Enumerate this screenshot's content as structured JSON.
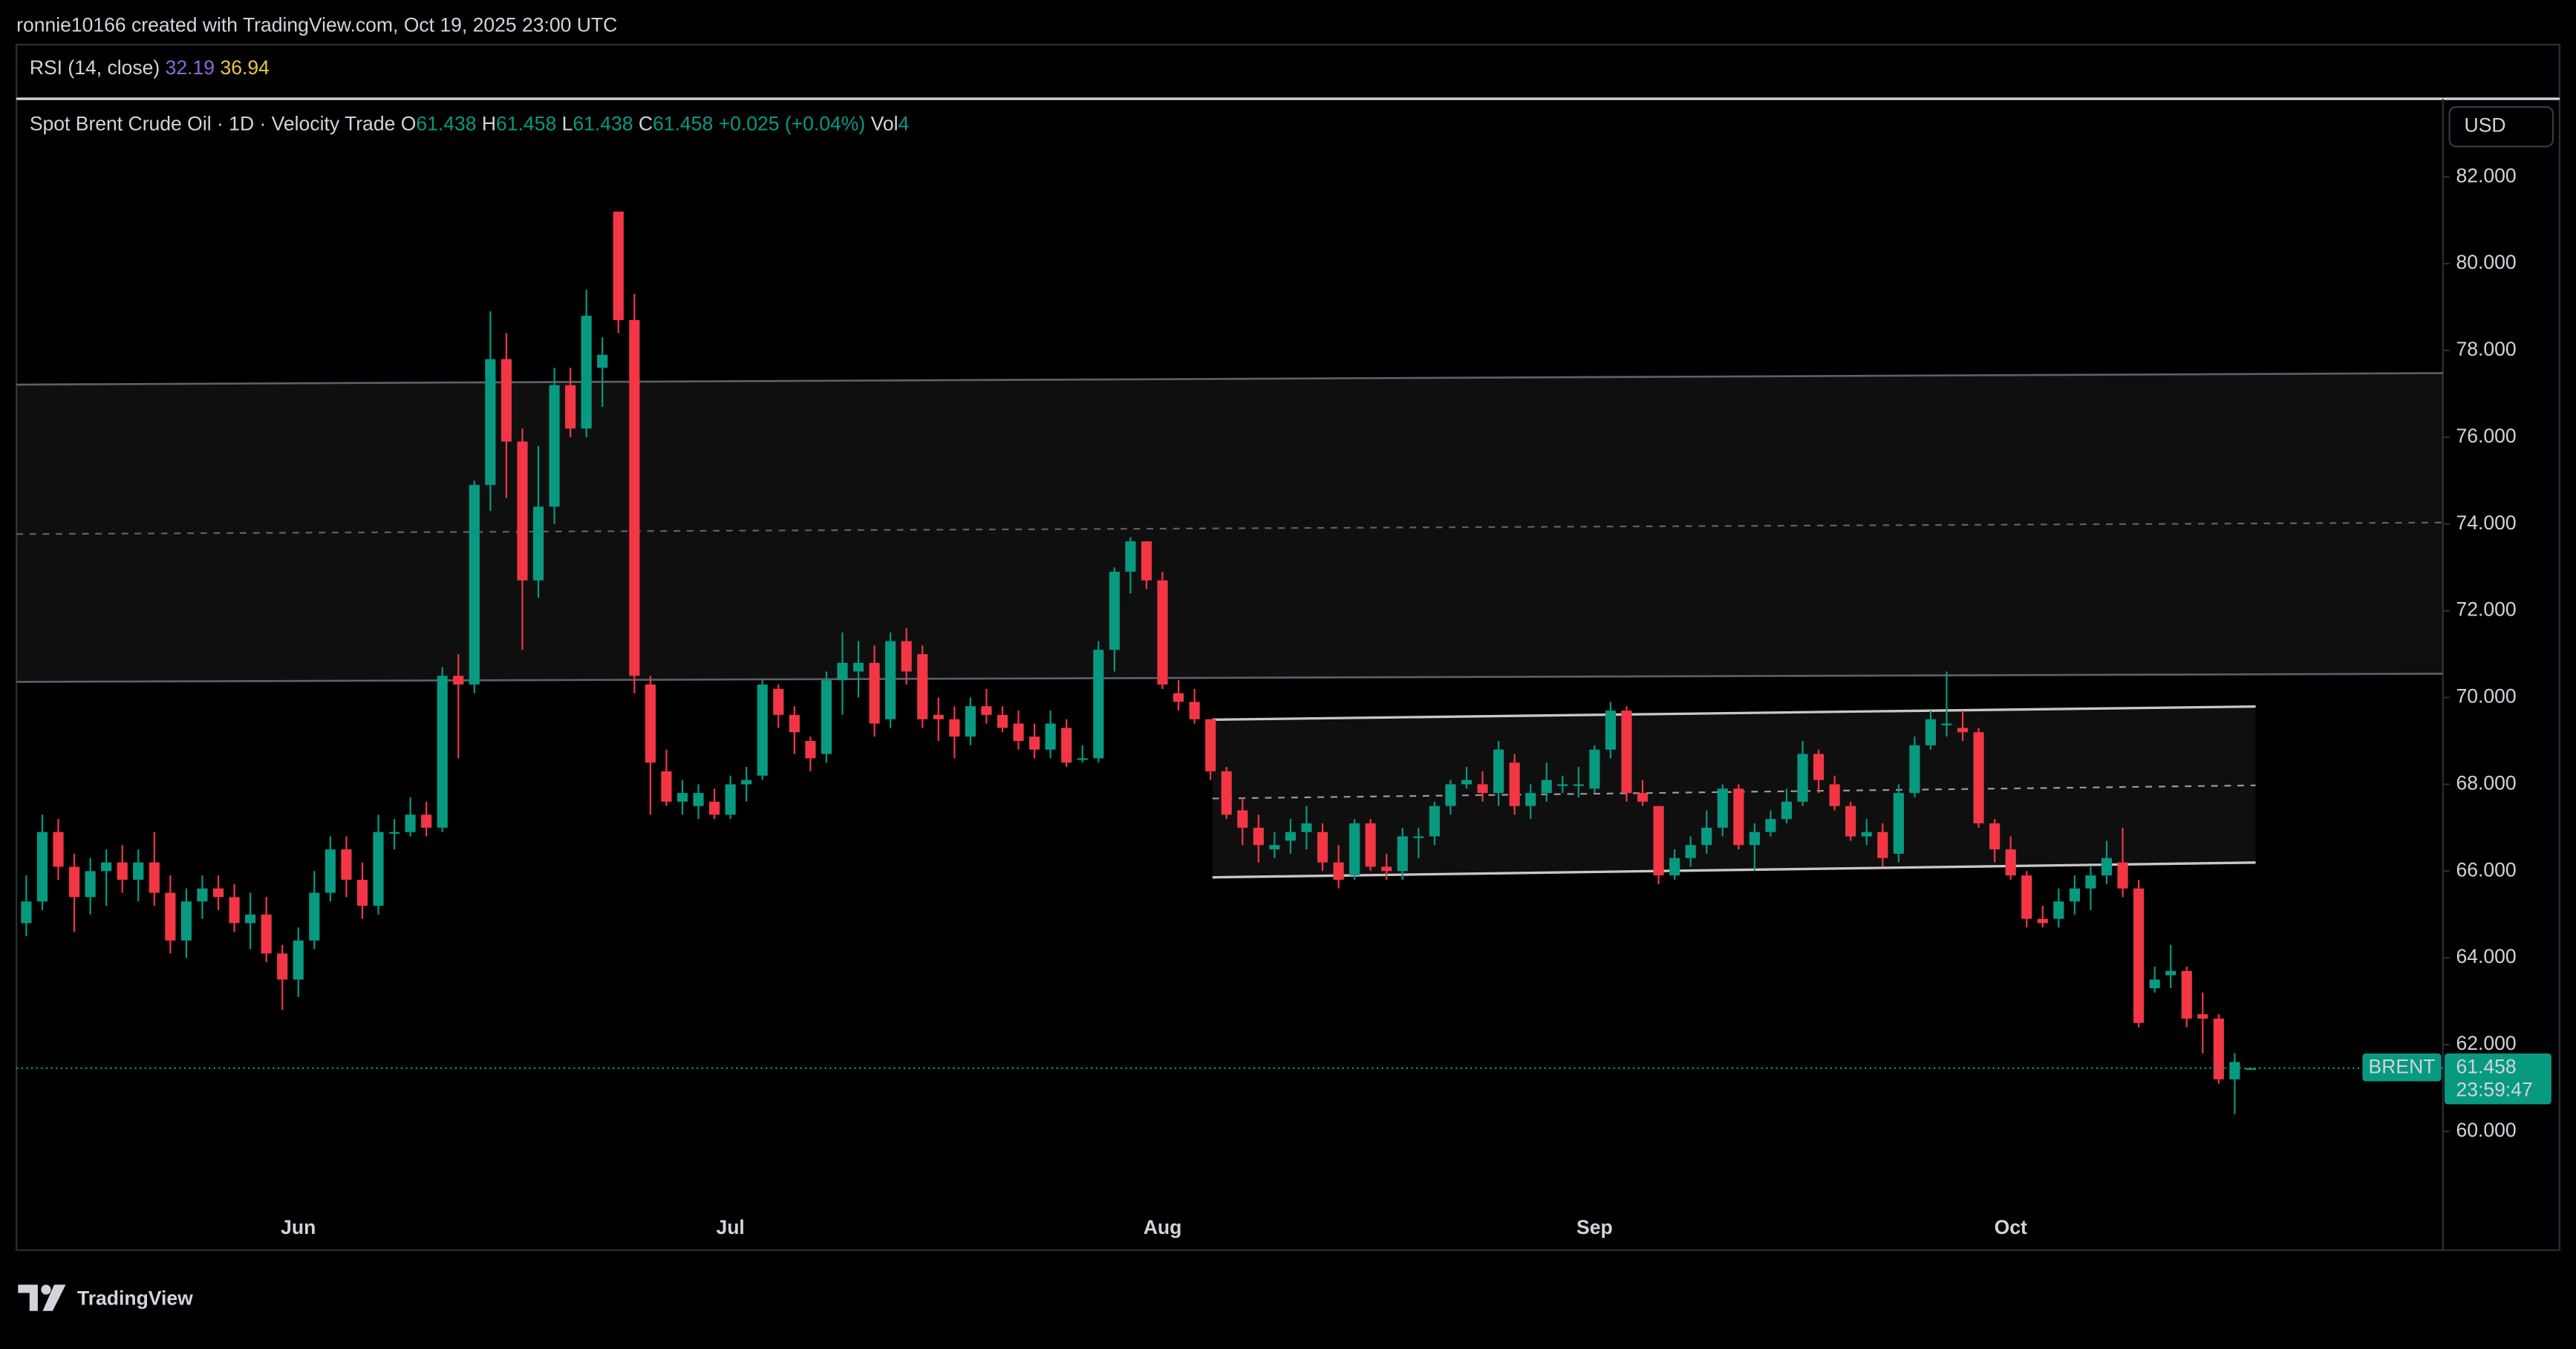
{
  "header": {
    "credit": "ronnie10166 created with TradingView.com, Oct 19, 2025 23:00 UTC",
    "brand": "TradingView"
  },
  "chart_data": {
    "type": "candlestick",
    "title": "Spot Brent Crude Oil · 1D · Velocity Trade",
    "ohlc_letters": [
      "O",
      "H",
      "L",
      "C"
    ],
    "change": "+0.025 (+0.04%)",
    "volume_label": "Vol",
    "volume": 4,
    "currency": "USD",
    "symbol": "BRENT",
    "countdown": "23:59:47",
    "up_color": "#089981",
    "down_color": "#f23645",
    "rsi": {
      "label": "RSI (14, close)",
      "values": [
        32.19,
        36.94
      ],
      "colors": [
        "#8c6ad8",
        "#e8c547"
      ]
    },
    "categories": [
      null,
      null,
      null,
      null,
      null,
      null,
      null,
      null,
      null,
      null,
      null,
      null,
      null,
      null,
      null,
      null,
      null,
      "Jun",
      null,
      null,
      null,
      null,
      null,
      null,
      null,
      null,
      null,
      null,
      null,
      null,
      null,
      null,
      null,
      null,
      null,
      null,
      null,
      null,
      null,
      null,
      null,
      null,
      null,
      null,
      "Jul",
      null,
      null,
      null,
      null,
      null,
      null,
      null,
      null,
      null,
      null,
      null,
      null,
      null,
      null,
      null,
      null,
      null,
      null,
      null,
      null,
      null,
      null,
      null,
      null,
      null,
      null,
      "Aug",
      null,
      null,
      null,
      null,
      null,
      null,
      null,
      null,
      null,
      null,
      null,
      null,
      null,
      null,
      null,
      null,
      null,
      null,
      null,
      null,
      null,
      null,
      null,
      null,
      null,
      null,
      "Sep",
      null,
      null,
      null,
      null,
      null,
      null,
      null,
      null,
      null,
      null,
      null,
      null,
      null,
      null,
      null,
      null,
      null,
      null,
      null,
      null,
      null,
      null,
      null,
      null,
      null,
      "Oct",
      null,
      null,
      null,
      null,
      null,
      null,
      null,
      null,
      null,
      null,
      null,
      null,
      null,
      null,
      null
    ],
    "candles": [
      [
        64.8,
        65.9,
        64.5,
        65.3
      ],
      [
        65.3,
        67.3,
        65.1,
        66.9
      ],
      [
        66.9,
        67.2,
        65.8,
        66.1
      ],
      [
        66.1,
        66.4,
        64.6,
        65.4
      ],
      [
        65.4,
        66.3,
        65.0,
        66.0
      ],
      [
        66.0,
        66.5,
        65.2,
        66.2
      ],
      [
        66.2,
        66.6,
        65.5,
        65.8
      ],
      [
        65.8,
        66.5,
        65.3,
        66.2
      ],
      [
        66.2,
        66.9,
        65.2,
        65.5
      ],
      [
        65.5,
        65.9,
        64.1,
        64.4
      ],
      [
        64.4,
        65.6,
        64.0,
        65.3
      ],
      [
        65.3,
        65.9,
        64.9,
        65.6
      ],
      [
        65.6,
        65.9,
        65.1,
        65.4
      ],
      [
        65.4,
        65.7,
        64.6,
        64.8
      ],
      [
        64.8,
        65.5,
        64.2,
        65.0
      ],
      [
        65.0,
        65.4,
        63.9,
        64.1
      ],
      [
        64.1,
        64.3,
        62.8,
        63.5
      ],
      [
        63.5,
        64.7,
        63.1,
        64.4
      ],
      [
        64.4,
        66.0,
        64.2,
        65.5
      ],
      [
        65.5,
        66.8,
        65.3,
        66.5
      ],
      [
        66.5,
        66.8,
        65.4,
        65.8
      ],
      [
        65.8,
        66.2,
        64.9,
        65.2
      ],
      [
        65.2,
        67.3,
        65.0,
        66.9
      ],
      [
        66.9,
        67.2,
        66.5,
        66.9
      ],
      [
        66.9,
        67.7,
        66.8,
        67.3
      ],
      [
        67.3,
        67.6,
        66.8,
        67.0
      ],
      [
        67.0,
        70.7,
        66.9,
        70.5
      ],
      [
        70.5,
        71.0,
        68.6,
        70.3
      ],
      [
        70.3,
        75.0,
        70.1,
        74.9
      ],
      [
        74.9,
        78.9,
        74.3,
        77.8
      ],
      [
        77.8,
        78.4,
        74.6,
        75.9
      ],
      [
        75.9,
        76.2,
        71.1,
        72.7
      ],
      [
        72.7,
        75.8,
        72.3,
        74.4
      ],
      [
        74.4,
        77.6,
        74.0,
        77.2
      ],
      [
        77.2,
        77.6,
        76.0,
        76.2
      ],
      [
        76.2,
        79.4,
        76.0,
        78.8
      ],
      [
        77.6,
        78.3,
        76.7,
        77.9
      ],
      [
        81.2,
        81.2,
        78.4,
        78.7
      ],
      [
        78.7,
        79.3,
        70.1,
        70.5
      ],
      [
        70.3,
        70.5,
        67.3,
        68.5
      ],
      [
        68.3,
        68.8,
        67.5,
        67.6
      ],
      [
        67.6,
        68.1,
        67.3,
        67.8
      ],
      [
        67.5,
        68.0,
        67.2,
        67.8
      ],
      [
        67.6,
        67.9,
        67.2,
        67.3
      ],
      [
        67.3,
        68.2,
        67.2,
        68.0
      ],
      [
        68.0,
        68.4,
        67.6,
        68.1
      ],
      [
        68.2,
        70.4,
        68.1,
        70.3
      ],
      [
        70.2,
        70.3,
        69.3,
        69.6
      ],
      [
        69.6,
        69.8,
        68.7,
        69.2
      ],
      [
        69.0,
        69.1,
        68.3,
        68.6
      ],
      [
        68.7,
        70.6,
        68.5,
        70.4
      ],
      [
        70.4,
        71.5,
        69.6,
        70.8
      ],
      [
        70.6,
        71.3,
        70.0,
        70.8
      ],
      [
        70.8,
        71.2,
        69.1,
        69.4
      ],
      [
        69.5,
        71.5,
        69.3,
        71.3
      ],
      [
        71.3,
        71.6,
        70.3,
        70.6
      ],
      [
        71.0,
        71.2,
        69.3,
        69.5
      ],
      [
        69.6,
        70.0,
        69.0,
        69.5
      ],
      [
        69.5,
        69.8,
        68.6,
        69.1
      ],
      [
        69.1,
        70.0,
        68.9,
        69.8
      ],
      [
        69.8,
        70.2,
        69.4,
        69.6
      ],
      [
        69.6,
        69.8,
        69.2,
        69.3
      ],
      [
        69.4,
        69.7,
        68.8,
        69.0
      ],
      [
        69.1,
        69.4,
        68.6,
        68.8
      ],
      [
        68.8,
        69.7,
        68.6,
        69.4
      ],
      [
        69.3,
        69.5,
        68.4,
        68.5
      ],
      [
        68.6,
        68.9,
        68.5,
        68.6
      ],
      [
        68.6,
        71.3,
        68.5,
        71.1
      ],
      [
        71.1,
        73.0,
        70.6,
        72.9
      ],
      [
        72.9,
        73.7,
        72.4,
        73.6
      ],
      [
        73.6,
        73.6,
        72.5,
        72.7
      ],
      [
        72.7,
        72.9,
        70.2,
        70.3
      ],
      [
        70.1,
        70.4,
        69.7,
        69.9
      ],
      [
        69.9,
        70.2,
        69.4,
        69.5
      ],
      [
        69.5,
        69.5,
        68.1,
        68.3
      ],
      [
        68.3,
        68.4,
        67.2,
        67.3
      ],
      [
        67.4,
        67.7,
        66.6,
        67.0
      ],
      [
        67.0,
        67.3,
        66.2,
        66.6
      ],
      [
        66.5,
        66.9,
        66.3,
        66.6
      ],
      [
        66.7,
        67.2,
        66.4,
        66.9
      ],
      [
        66.9,
        67.5,
        66.5,
        67.1
      ],
      [
        66.9,
        67.1,
        66.0,
        66.2
      ],
      [
        66.2,
        66.6,
        65.6,
        65.8
      ],
      [
        65.9,
        67.2,
        65.8,
        67.1
      ],
      [
        67.1,
        67.2,
        66.0,
        66.1
      ],
      [
        66.1,
        66.4,
        65.8,
        66.0
      ],
      [
        66.0,
        67.0,
        65.8,
        66.8
      ],
      [
        66.8,
        67.0,
        66.3,
        66.8
      ],
      [
        66.8,
        67.6,
        66.6,
        67.5
      ],
      [
        67.5,
        68.1,
        67.3,
        68.0
      ],
      [
        68.0,
        68.4,
        67.9,
        68.1
      ],
      [
        68.0,
        68.3,
        67.6,
        67.8
      ],
      [
        67.8,
        69.0,
        67.5,
        68.8
      ],
      [
        68.5,
        68.7,
        67.3,
        67.5
      ],
      [
        67.5,
        68.0,
        67.2,
        67.8
      ],
      [
        67.8,
        68.5,
        67.6,
        68.1
      ],
      [
        68.0,
        68.2,
        67.8,
        68.0
      ],
      [
        68.0,
        68.4,
        67.7,
        68.0
      ],
      [
        67.9,
        68.9,
        67.8,
        68.8
      ],
      [
        68.8,
        69.9,
        68.6,
        69.7
      ],
      [
        69.7,
        69.8,
        67.6,
        67.8
      ],
      [
        67.8,
        68.1,
        67.5,
        67.6
      ],
      [
        67.5,
        67.5,
        65.7,
        65.9
      ],
      [
        65.9,
        66.5,
        65.8,
        66.3
      ],
      [
        66.3,
        66.8,
        66.1,
        66.6
      ],
      [
        66.6,
        67.4,
        66.4,
        67.0
      ],
      [
        67.0,
        68.0,
        66.8,
        67.9
      ],
      [
        67.9,
        68.0,
        66.5,
        66.6
      ],
      [
        66.6,
        67.1,
        66.0,
        66.9
      ],
      [
        66.9,
        67.4,
        66.8,
        67.2
      ],
      [
        67.2,
        67.9,
        67.1,
        67.6
      ],
      [
        67.6,
        69.0,
        67.5,
        68.7
      ],
      [
        68.7,
        68.8,
        67.8,
        68.1
      ],
      [
        68.0,
        68.2,
        67.4,
        67.5
      ],
      [
        67.5,
        67.6,
        66.7,
        66.8
      ],
      [
        66.8,
        67.2,
        66.6,
        66.9
      ],
      [
        66.9,
        67.1,
        66.1,
        66.3
      ],
      [
        66.4,
        68.0,
        66.2,
        67.8
      ],
      [
        67.8,
        69.1,
        67.7,
        68.9
      ],
      [
        68.9,
        69.7,
        68.8,
        69.5
      ],
      [
        69.4,
        70.6,
        69.1,
        69.4
      ],
      [
        69.3,
        69.7,
        69.0,
        69.2
      ],
      [
        69.2,
        69.3,
        67.0,
        67.1
      ],
      [
        67.1,
        67.2,
        66.2,
        66.5
      ],
      [
        66.5,
        66.8,
        65.8,
        65.9
      ],
      [
        65.9,
        66.0,
        64.7,
        64.9
      ],
      [
        64.9,
        65.2,
        64.7,
        64.8
      ],
      [
        64.9,
        65.6,
        64.7,
        65.3
      ],
      [
        65.3,
        65.9,
        65.0,
        65.6
      ],
      [
        65.6,
        66.1,
        65.1,
        65.9
      ],
      [
        65.9,
        66.7,
        65.7,
        66.3
      ],
      [
        66.2,
        67.0,
        65.4,
        65.6
      ],
      [
        65.6,
        65.8,
        62.4,
        62.5
      ],
      [
        63.3,
        63.8,
        63.2,
        63.5
      ],
      [
        63.6,
        64.3,
        63.3,
        63.7
      ],
      [
        63.7,
        63.8,
        62.4,
        62.6
      ],
      [
        62.7,
        63.2,
        61.8,
        62.6
      ],
      [
        62.6,
        62.7,
        61.1,
        61.2
      ],
      [
        61.2,
        61.8,
        60.4,
        61.6
      ],
      [
        61.438,
        61.458,
        61.438,
        61.458
      ]
    ],
    "ylim": [
      57.3,
      83.8
    ],
    "yticks": [
      {
        "value": 60,
        "label": "60.000"
      },
      {
        "value": 62,
        "label": "62.000"
      },
      {
        "value": 64,
        "label": "64.000"
      },
      {
        "value": 66,
        "label": "66.000"
      },
      {
        "value": 68,
        "label": "68.000"
      },
      {
        "value": 70,
        "label": "70.000"
      },
      {
        "value": 72,
        "label": "72.000"
      },
      {
        "value": 74,
        "label": "74.000"
      },
      {
        "value": 76,
        "label": "76.000"
      },
      {
        "value": 78,
        "label": "78.000"
      },
      {
        "value": 80,
        "label": "80.000"
      },
      {
        "value": 82,
        "label": "82.000"
      }
    ]
  }
}
